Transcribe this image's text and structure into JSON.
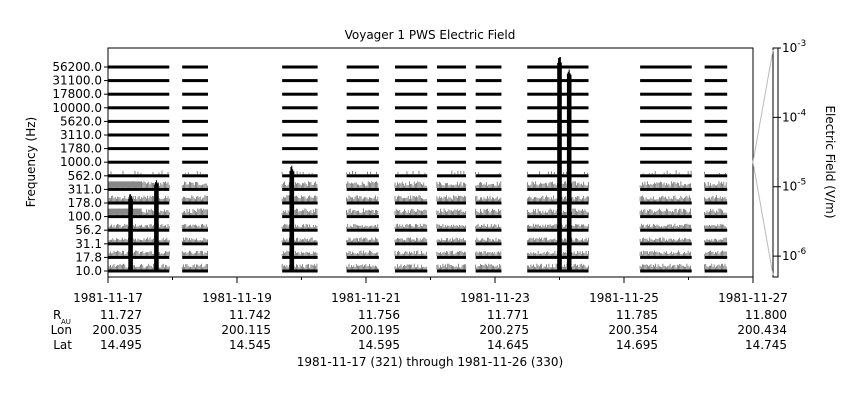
{
  "chart_data": {
    "type": "heatmap",
    "title": "Voyager 1 PWS Electric Field",
    "ylabel": "Frequency (Hz)",
    "colorbar_label": "Electric Field (V/m)",
    "colorbar_scale": "log",
    "colorbar_range": [
      5e-07,
      0.001
    ],
    "colorbar_ticks": [
      {
        "base": "10",
        "exp": "-3",
        "value": 0.001
      },
      {
        "base": "10",
        "exp": "-4",
        "value": 0.0001
      },
      {
        "base": "10",
        "exp": "-5",
        "value": 1e-05
      },
      {
        "base": "10",
        "exp": "-6",
        "value": 1e-06
      }
    ],
    "channels_hz": [
      "56200.0",
      "31100.0",
      "17800.0",
      "10000.0",
      "5620.0",
      "3110.0",
      "1780.0",
      "1000.0",
      "562.0",
      "311.0",
      "178.0",
      "100.0",
      "56.2",
      "31.1",
      "17.8",
      "10.0"
    ],
    "channel_levels": [
      0.15,
      0.15,
      0.15,
      0.15,
      0.15,
      0.15,
      0.2,
      0.25,
      0.3,
      0.75,
      0.7,
      0.75,
      0.55,
      0.55,
      0.6,
      0.65
    ],
    "x_range_days": [
      0,
      10
    ],
    "x_ticks": [
      {
        "day": 0,
        "label": "1981-11-17",
        "r_au": "11.727",
        "lon": "200.035",
        "lat": "14.495"
      },
      {
        "day": 2,
        "label": "1981-11-19",
        "r_au": "11.742",
        "lon": "200.115",
        "lat": "14.545"
      },
      {
        "day": 4,
        "label": "1981-11-21",
        "r_au": "11.756",
        "lon": "200.195",
        "lat": "14.595"
      },
      {
        "day": 6,
        "label": "1981-11-23",
        "r_au": "11.771",
        "lon": "200.275",
        "lat": "14.645"
      },
      {
        "day": 8,
        "label": "1981-11-25",
        "r_au": "11.785",
        "lon": "200.354",
        "lat": "14.695"
      },
      {
        "day": 10,
        "label": "1981-11-27",
        "r_au": "11.800",
        "lon": "200.434",
        "lat": "14.745"
      }
    ],
    "row_labels": {
      "r": "R",
      "r_sub": "AU",
      "lon": "Lon",
      "lat": "Lat"
    },
    "data_segments_days": [
      [
        0,
        0.95
      ],
      [
        1.15,
        1.55
      ],
      [
        2.7,
        3.25
      ],
      [
        3.7,
        4.2
      ],
      [
        4.45,
        4.95
      ],
      [
        5.1,
        5.55
      ],
      [
        5.7,
        6.1
      ],
      [
        6.5,
        7.45
      ],
      [
        8.25,
        9.05
      ],
      [
        9.25,
        9.6
      ]
    ],
    "events_days": [
      {
        "day": 7.0,
        "strength": 1.0
      },
      {
        "day": 7.15,
        "strength": 0.95
      },
      {
        "day": 0.35,
        "strength": 0.35
      },
      {
        "day": 0.75,
        "strength": 0.4
      },
      {
        "day": 2.85,
        "strength": 0.45
      }
    ],
    "footer": "1981-11-17 (321) through 1981-11-26 (330)"
  }
}
